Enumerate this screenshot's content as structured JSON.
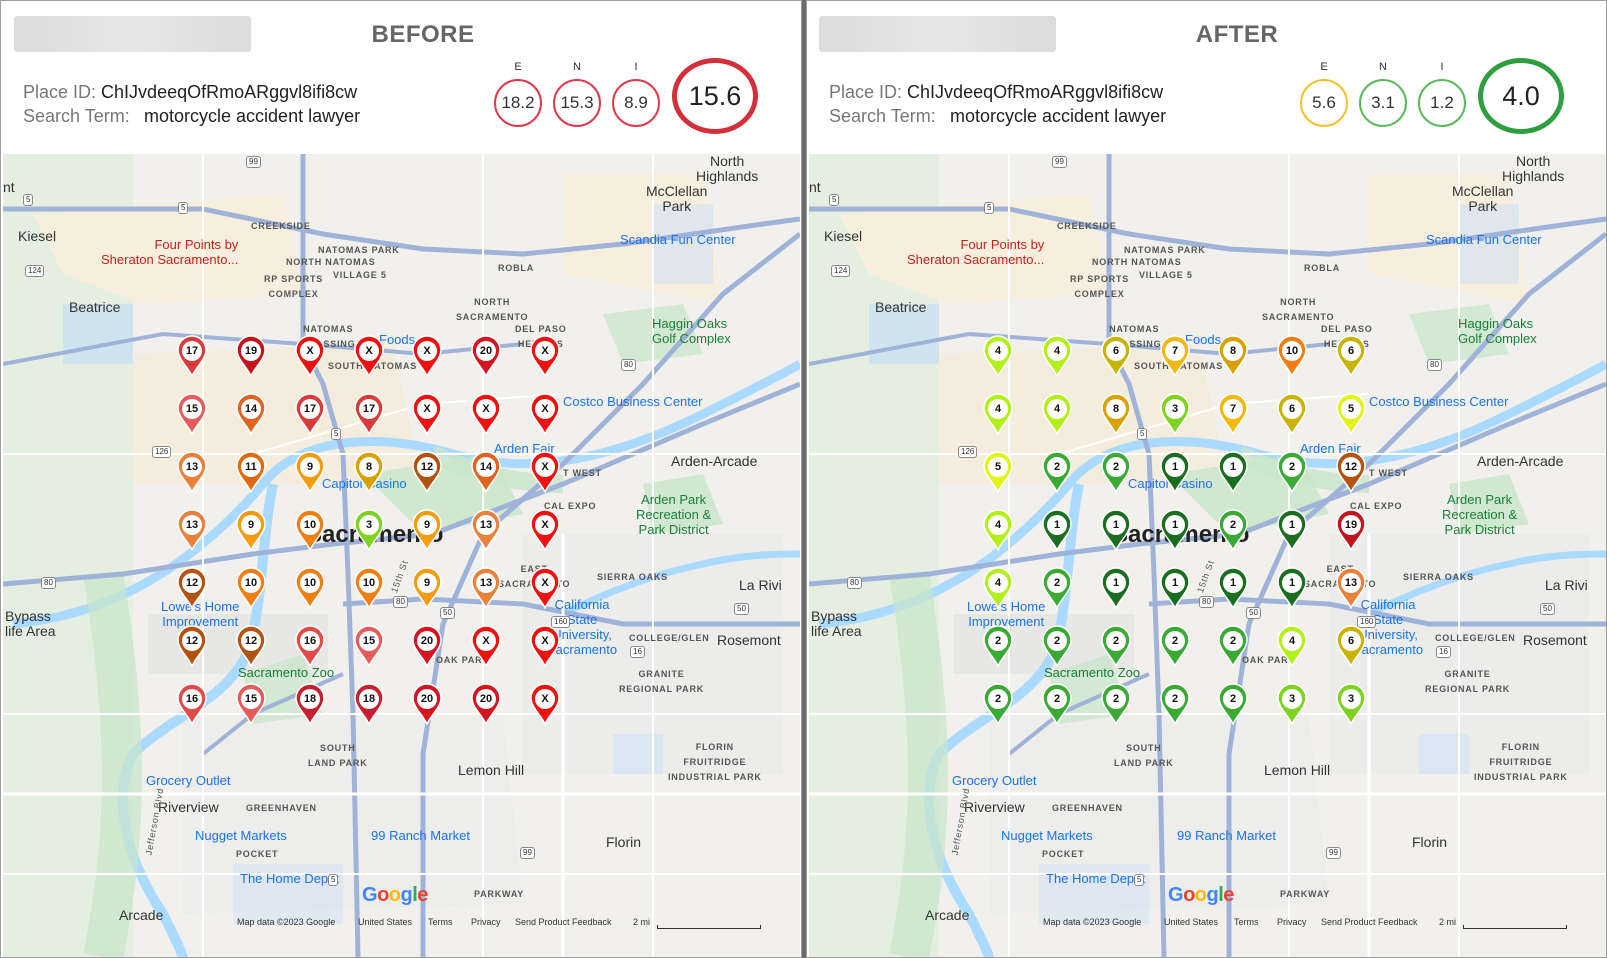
{
  "panels": [
    {
      "title": "BEFORE",
      "place_id_label": "Place ID:",
      "place_id": "ChIJvdeeqOfRmoARggvl8ifi8cw",
      "search_term_label": "Search Term:",
      "search_term": "motorcycle accident lawyer",
      "scores": [
        {
          "letter": "E",
          "value": "18.2",
          "color": "#e03a4a"
        },
        {
          "letter": "N",
          "value": "15.3",
          "color": "#e03a4a"
        },
        {
          "letter": "I",
          "value": "8.9",
          "color": "#e03a4a"
        }
      ],
      "overall": {
        "value": "15.6",
        "color": "#d32f3a"
      },
      "pins": [
        [
          "17",
          "19",
          "X",
          "X",
          "X",
          "20",
          "X"
        ],
        [
          "15",
          "14",
          "17",
          "17",
          "X",
          "X",
          "X"
        ],
        [
          "13",
          "11",
          "9",
          "8",
          "12",
          "14",
          "X"
        ],
        [
          "13",
          "9",
          "10",
          "3",
          "9",
          "13",
          "X"
        ],
        [
          "12",
          "10",
          "10",
          "10",
          "9",
          "13",
          "X"
        ],
        [
          "12",
          "12",
          "16",
          "15",
          "20",
          "X",
          "X"
        ],
        [
          "16",
          "15",
          "18",
          "18",
          "20",
          "20",
          "X"
        ]
      ]
    },
    {
      "title": "AFTER",
      "place_id_label": "Place ID:",
      "place_id": "ChIJvdeeqOfRmoARggvl8ifi8cw",
      "search_term_label": "Search Term:",
      "search_term": "motorcycle accident lawyer",
      "scores": [
        {
          "letter": "E",
          "value": "5.6",
          "color": "#f2c12e"
        },
        {
          "letter": "N",
          "value": "3.1",
          "color": "#5cb85c"
        },
        {
          "letter": "I",
          "value": "1.2",
          "color": "#5cb85c"
        }
      ],
      "overall": {
        "value": "4.0",
        "color": "#2e9e3e"
      },
      "pins": [
        [
          "4",
          "4",
          "6",
          "7",
          "8",
          "10",
          "6"
        ],
        [
          "4",
          "4",
          "8",
          "3",
          "7",
          "6",
          "5"
        ],
        [
          "5",
          "2",
          "2",
          "1",
          "1",
          "2",
          "12"
        ],
        [
          "4",
          "1",
          "1",
          "1",
          "2",
          "1",
          "19"
        ],
        [
          "4",
          "2",
          "1",
          "1",
          "1",
          "1",
          "13"
        ],
        [
          "2",
          "2",
          "2",
          "2",
          "2",
          "4",
          "6"
        ],
        [
          "2",
          "2",
          "2",
          "2",
          "2",
          "3",
          "3"
        ]
      ]
    }
  ],
  "map_labels": {
    "north_highlands": "North\nHighlands",
    "mcclellan": "McClellan\nPark",
    "scandia": "Scandia Fun Center",
    "kiesel": "Kiesel",
    "four_points": "Four Points by\nSheraton Sacramento...",
    "creekside": "CREEKSIDE",
    "natomas_park": "NATOMAS PARK",
    "north_natomas": "NORTH NATOMAS",
    "village5": "VILLAGE 5",
    "rp_sports": "RP SPORTS\nCOMPLEX",
    "robla": "ROBLA",
    "beatrice": "Beatrice",
    "north_sacramento": "NORTH\nSACRAMENTO",
    "natomas_crossing": "NATOMAS\nCROSSING",
    "foods": "Foods",
    "del_paso": "DEL PASO\nHEIGHTS",
    "haggin": "Haggin Oaks\nGolf Complex",
    "south_natomas": "SOUTH NATOMAS",
    "costco": "Costco Business Center",
    "arden_fair": "Arden Fair",
    "arden_arcade": "Arden-Arcade",
    "capitol_casino": "Capitol Casino",
    "cal_expo": "CAL EXPO",
    "arden_park": "Arden Park\nRecreation &\nPark District",
    "sacramento": "Sacramento",
    "east_sacramento": "EAST\nSACRAMENTO",
    "sierra_oaks": "SIERRA OAKS",
    "la_riviera": "La Rivi",
    "bypass": "Bypass\nlife Area",
    "lowes": "Lowe's Home\nImprovement",
    "california_state": "California\nState\nUniversity,\nSacramento",
    "college_glen": "COLLEGE/GLEN",
    "rosemont": "Rosemont",
    "oak_park": "OAK PARK",
    "sacramento_zoo": "Sacramento Zoo",
    "granite": "GRANITE\nREGIONAL PARK",
    "south_land_park": "SOUTH\nLAND PARK",
    "lemon_hill": "Lemon Hill",
    "florin_fruitridge": "FLORIN\nFRUITRIDGE\nINDUSTRIAL PARK",
    "grocery_outlet": "Grocery Outlet",
    "riverview": "Riverview",
    "greenhaven": "GREENHAVEN",
    "nugget": "Nugget Markets",
    "ranch99": "99 Ranch Market",
    "pocket": "POCKET",
    "florin": "Florin",
    "home_depot": "The Home Depot",
    "parkway": "PARKWAY",
    "arcade": "Arcade",
    "google": "Google",
    "jefferson": "Jefferson Blvd",
    "fifteenth": "15th St",
    "x_west": "T WEST",
    "x_nt": "nt",
    "shield_5": "5",
    "shield_99": "99",
    "shield_80": "80",
    "shield_50": "50",
    "shield_124": "124",
    "shield_126": "126",
    "shield_16": "16",
    "shield_160": "160"
  },
  "footer": {
    "map_data": "Map data ©2023 Google",
    "country": "United States",
    "terms": "Terms",
    "privacy": "Privacy",
    "feedback": "Send Product Feedback",
    "scale": "2 mi"
  },
  "colors": {
    "water": "#aadaff",
    "park": "#c8e6c9",
    "urban": "#ececec",
    "highway": "#9fb3d8",
    "road": "#ffffff"
  }
}
